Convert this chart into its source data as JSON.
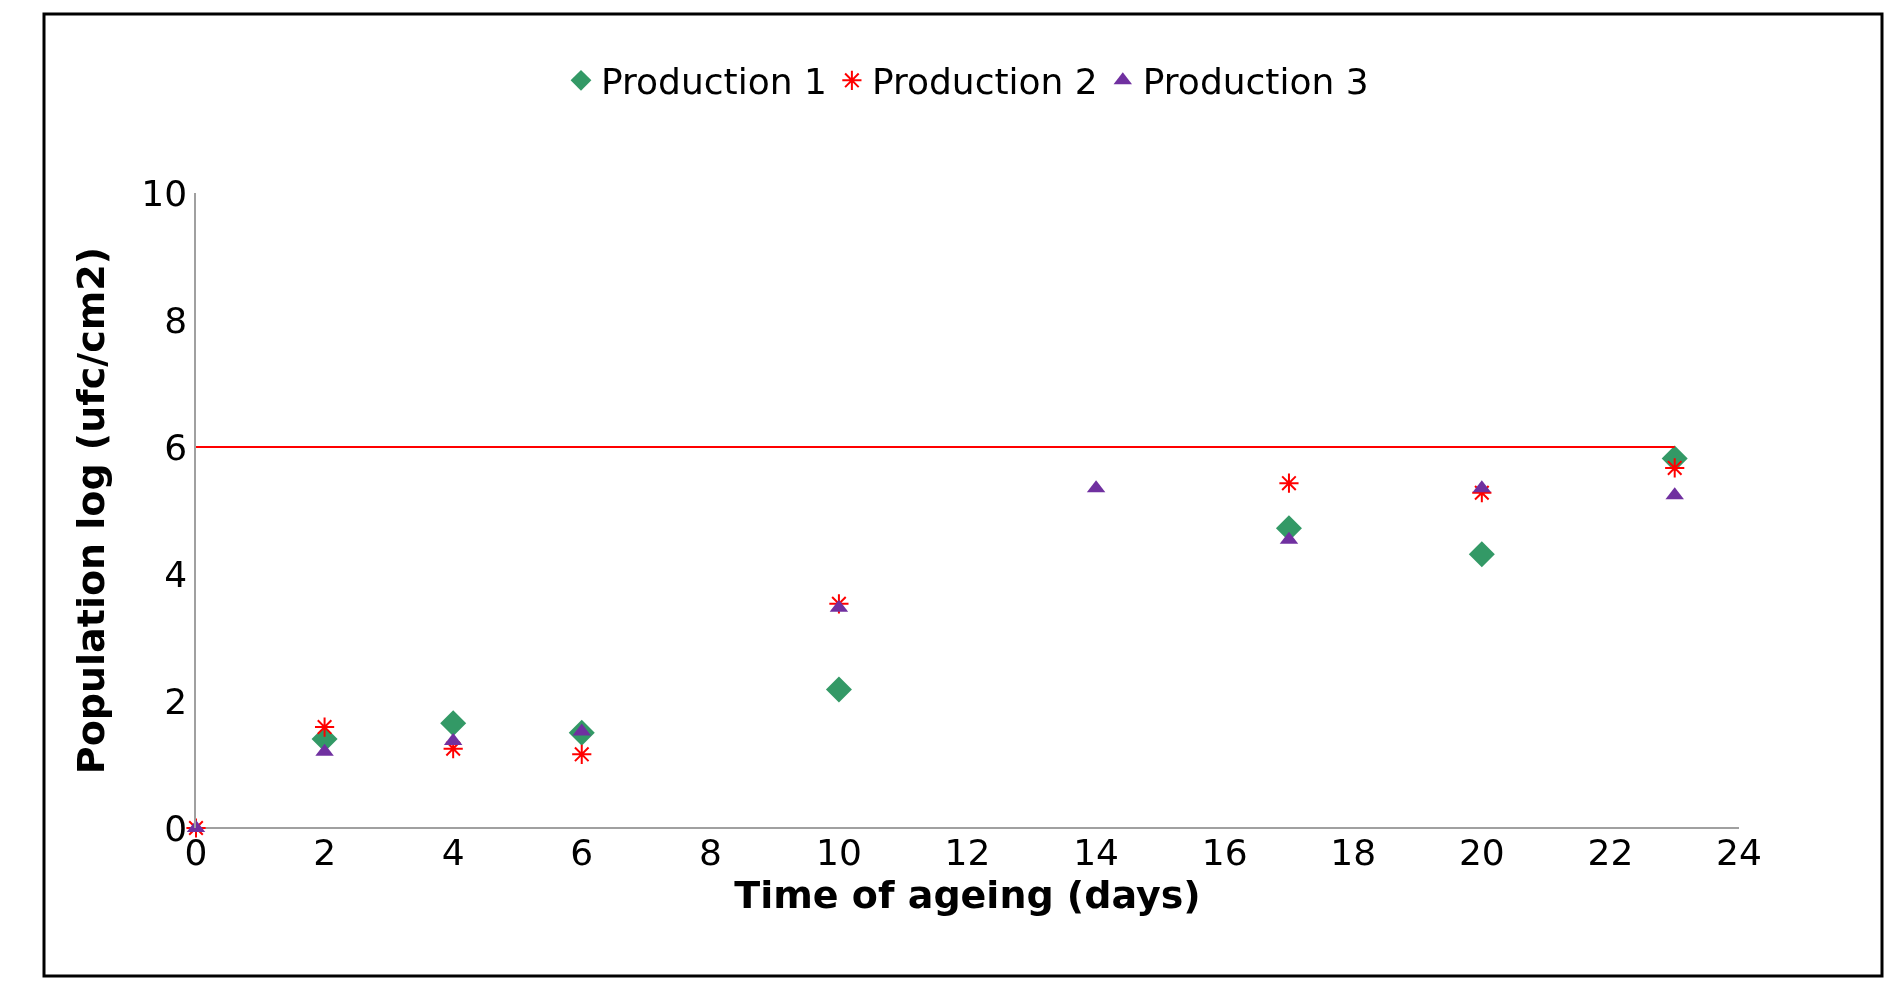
{
  "chart_data": {
    "type": "scatter",
    "xlabel": "Time of ageing (days)",
    "ylabel": "Population log (ufc/cm2)",
    "x": [
      0,
      2,
      4,
      6,
      10,
      14,
      17,
      20,
      23
    ],
    "series": [
      {
        "name": "Production 1",
        "color": "#339966",
        "marker": "diamond",
        "values": [
          null,
          1.4,
          1.65,
          1.5,
          2.18,
          null,
          4.72,
          4.31,
          5.82
        ]
      },
      {
        "name": "Production 2",
        "color": "#ff0000",
        "marker": "cross",
        "values": [
          0,
          1.59,
          1.25,
          1.16,
          3.53,
          null,
          5.43,
          5.28,
          5.67
        ]
      },
      {
        "name": "Production 3",
        "color": "#7030a0",
        "marker": "triangle",
        "values": [
          0,
          1.2,
          1.37,
          1.52,
          3.47,
          5.35,
          4.54,
          5.35,
          5.24
        ]
      },
      {
        "type": "line",
        "color": "#ff0000",
        "marker": "none",
        "x": [
          0,
          23
        ],
        "values": [
          6,
          6
        ]
      }
    ],
    "xlim": [
      0,
      24
    ],
    "xticks": [
      0,
      2,
      4,
      6,
      8,
      10,
      12,
      14,
      16,
      18,
      20,
      22,
      24
    ],
    "ylim": [
      0,
      10
    ],
    "yticks": [
      0,
      2,
      4,
      6,
      8,
      10
    ],
    "legend": "top"
  }
}
